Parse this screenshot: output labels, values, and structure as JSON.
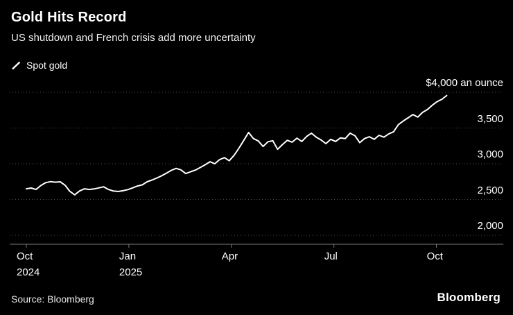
{
  "header": {
    "title": "Gold Hits Record",
    "subtitle": "US shutdown and French crisis add more uncertainty"
  },
  "legend": {
    "label": "Spot gold"
  },
  "footer": {
    "source": "Source: Bloomberg",
    "logo": "Bloomberg"
  },
  "colors": {
    "background": "#000000",
    "line": "#ffffff",
    "gridline": "#4d4d4d",
    "axis": "#787878",
    "text": "#ffffff"
  },
  "chart_data": {
    "type": "line",
    "title": "Gold Hits Record",
    "subtitle": "US shutdown and French crisis add more uncertainty",
    "unit": "US dollars an ounce",
    "x_start": "Oct 2024",
    "x_end": "Oct 2025",
    "x_months_span": 12.3,
    "grid": "dotted-horizontal",
    "legend_position": "top-left",
    "y_axis_side": "right",
    "y_range_shown": [
      1880,
      4100
    ],
    "x_ticks": [
      {
        "month": 0,
        "lines": [
          "Oct",
          "2024"
        ]
      },
      {
        "month": 3,
        "lines": [
          "Jan",
          "2025"
        ]
      },
      {
        "month": 6,
        "lines": [
          "Apr"
        ]
      },
      {
        "month": 9,
        "lines": [
          "Jul"
        ]
      },
      {
        "month": 12,
        "lines": [
          "Oct"
        ]
      }
    ],
    "y_ticks": [
      {
        "value": 4000,
        "label": "$4,000 an ounce"
      },
      {
        "value": 3500,
        "label": "3,500"
      },
      {
        "value": 3000,
        "label": "3,000"
      },
      {
        "value": 2500,
        "label": "2,500"
      },
      {
        "value": 2000,
        "label": "2,000"
      }
    ],
    "series": [
      {
        "name": "Spot gold",
        "color": "#ffffff",
        "values": [
          2650,
          2660,
          2640,
          2695,
          2735,
          2750,
          2742,
          2748,
          2700,
          2615,
          2565,
          2618,
          2650,
          2640,
          2648,
          2662,
          2678,
          2640,
          2618,
          2612,
          2622,
          2638,
          2662,
          2688,
          2705,
          2748,
          2772,
          2800,
          2832,
          2868,
          2908,
          2935,
          2915,
          2862,
          2888,
          2912,
          2948,
          2985,
          3028,
          3000,
          3058,
          3085,
          3042,
          3118,
          3218,
          3328,
          3438,
          3352,
          3318,
          3242,
          3308,
          3322,
          3202,
          3268,
          3328,
          3302,
          3358,
          3312,
          3382,
          3428,
          3372,
          3332,
          3282,
          3342,
          3312,
          3362,
          3352,
          3428,
          3392,
          3295,
          3352,
          3378,
          3342,
          3398,
          3372,
          3418,
          3448,
          3548,
          3598,
          3642,
          3688,
          3652,
          3718,
          3758,
          3818,
          3868,
          3902,
          3955
        ]
      }
    ]
  }
}
